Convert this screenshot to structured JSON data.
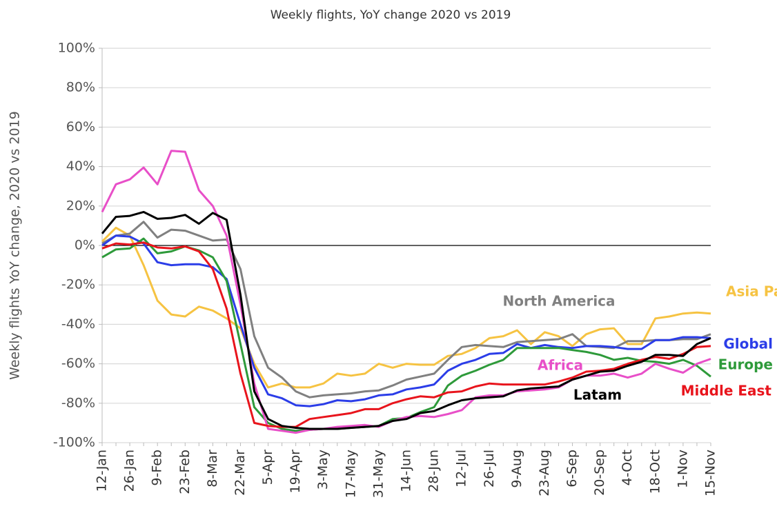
{
  "chart_data": {
    "type": "line",
    "title": "Weekly flights, YoY change 2020 vs 2019",
    "y_label": "Weekly flights YoY change, 2020 vs 2019",
    "categories": [
      "12-Jan",
      null,
      "26-Jan",
      null,
      "9-Feb",
      null,
      "23-Feb",
      null,
      "8-Mar",
      null,
      "22-Mar",
      null,
      "5-Apr",
      null,
      "19-Apr",
      null,
      "3-May",
      null,
      "17-May",
      null,
      "31-May",
      null,
      "14-Jun",
      null,
      "28-Jun",
      null,
      "12-Jul",
      null,
      "26-Jul",
      null,
      "9-Aug",
      null,
      "23-Aug",
      null,
      "6-Sep",
      null,
      "20-Sep",
      null,
      "4-Oct",
      null,
      "18-Oct",
      null,
      "1-Nov",
      null,
      "15-Nov"
    ],
    "ylim": [
      -100,
      100
    ],
    "yticks": [
      {
        "value": -100,
        "label": "-100%"
      },
      {
        "value": -80,
        "label": "-80%"
      },
      {
        "value": -60,
        "label": "-60%"
      },
      {
        "value": -40,
        "label": "-40%"
      },
      {
        "value": -20,
        "label": "-20%"
      },
      {
        "value": 0,
        "label": "0%"
      },
      {
        "value": 20,
        "label": "20%"
      },
      {
        "value": 40,
        "label": "40%"
      },
      {
        "value": 60,
        "label": "60%"
      },
      {
        "value": 80,
        "label": "80%"
      },
      {
        "value": 100,
        "label": "100%"
      }
    ],
    "grid": true,
    "series": [
      {
        "name": "Asia Pacific",
        "color": "#f6c342",
        "values": [
          2,
          9,
          5,
          -10,
          -28,
          -35,
          -36,
          -31,
          -33,
          -37,
          -42,
          -60,
          -72,
          -70,
          -72,
          -72,
          -70,
          -65,
          -66,
          -65,
          -60,
          -62,
          -60,
          -60.5,
          -60.5,
          -56,
          -55,
          -52,
          -47,
          -46,
          -43,
          -50,
          -44,
          -46,
          -51,
          -45,
          -42.5,
          -42,
          -50,
          -50,
          -37,
          -36,
          -34.5,
          -34,
          -34.5
        ]
      },
      {
        "name": "North America",
        "color": "#808080",
        "values": [
          1,
          5,
          6,
          12,
          4,
          8,
          7.5,
          5,
          2.5,
          3,
          -12,
          -46,
          -62,
          -67,
          -74,
          -77,
          -76,
          -75.5,
          -75,
          -74,
          -73.5,
          -71,
          -68,
          -66.5,
          -65,
          -58,
          -51.5,
          -50.5,
          -51,
          -51.5,
          -49,
          -48.5,
          -48,
          -47.5,
          -45,
          -51,
          -51.5,
          -52,
          -48.5,
          -48.5,
          -48,
          -48,
          -47.5,
          -47.5,
          -45
        ]
      },
      {
        "name": "Global",
        "color": "#2b3de8",
        "values": [
          0,
          5,
          4.5,
          1,
          -8.5,
          -10,
          -9.5,
          -9.5,
          -11,
          -17,
          -40,
          -62,
          -75.5,
          -77.5,
          -81,
          -81.5,
          -80.5,
          -78.5,
          -79,
          -78,
          -76,
          -75.5,
          -73,
          -72,
          -70.5,
          -63.5,
          -60,
          -58,
          -55,
          -54.5,
          -50,
          -52,
          -50.5,
          -51.5,
          -52,
          -51,
          -51,
          -51.5,
          -52.5,
          -52.5,
          -48,
          -48,
          -46.5,
          -46.5,
          -47
        ]
      },
      {
        "name": "Europe",
        "color": "#2e9a3a",
        "values": [
          -6,
          -2,
          -1.5,
          3.5,
          -4,
          -3,
          -0.5,
          -2.5,
          -6,
          -18,
          -50,
          -82,
          -90,
          -93,
          -94,
          -93.5,
          -93,
          -93,
          -92.5,
          -92,
          -91.5,
          -88,
          -87.5,
          -84.5,
          -82,
          -71,
          -66,
          -63.5,
          -60.5,
          -58,
          -52,
          -52,
          -52,
          -52,
          -53,
          -54,
          -55.5,
          -58,
          -57,
          -58.5,
          -59,
          -60,
          -58,
          -61,
          -66.5
        ]
      },
      {
        "name": "Africa",
        "color": "#e84fc8",
        "values": [
          17,
          31,
          33.5,
          39.5,
          31,
          48,
          47.5,
          28,
          20,
          5,
          -30,
          -70,
          -93,
          -94,
          -95,
          -93.5,
          -93,
          -92,
          -91.5,
          -91,
          -92,
          -89,
          -87,
          -86.5,
          -87,
          -85.5,
          -83.5,
          -77,
          -76,
          -76,
          -74,
          -73.5,
          -73,
          -72,
          -68,
          -66,
          -66,
          -65,
          -67,
          -65,
          -60,
          -62.5,
          -64.5,
          -60,
          -57.5
        ]
      },
      {
        "name": "Middle East",
        "color": "#e8141c",
        "values": [
          -1.5,
          1,
          0.5,
          1.5,
          -1,
          -1.5,
          -0.5,
          -3,
          -12,
          -32,
          -65,
          -90,
          -91.5,
          -92,
          -92,
          -88,
          -87,
          -86,
          -85,
          -83,
          -83,
          -80,
          -78,
          -76.5,
          -77,
          -74.5,
          -74,
          -71.5,
          -70,
          -70.5,
          -70.5,
          -70.5,
          -70.5,
          -69,
          -67,
          -64,
          -63.5,
          -62.5,
          -60,
          -58,
          -56.5,
          -57.5,
          -55,
          -51.5,
          -51
        ]
      },
      {
        "name": "Latam",
        "color": "#000000",
        "values": [
          6,
          14.5,
          15,
          17,
          13.5,
          14,
          15.5,
          11,
          16.5,
          13,
          -25,
          -74,
          -88,
          -91.5,
          -92.5,
          -93,
          -93,
          -93,
          -92.5,
          -92,
          -91.5,
          -89,
          -88,
          -85,
          -84,
          -81,
          -78.5,
          -77.5,
          -77,
          -76.5,
          -73.5,
          -72.5,
          -72,
          -71.5,
          -68,
          -66,
          -64,
          -63.5,
          -61,
          -59,
          -55.5,
          -55.5,
          -56,
          -50,
          -47
        ]
      }
    ]
  }
}
